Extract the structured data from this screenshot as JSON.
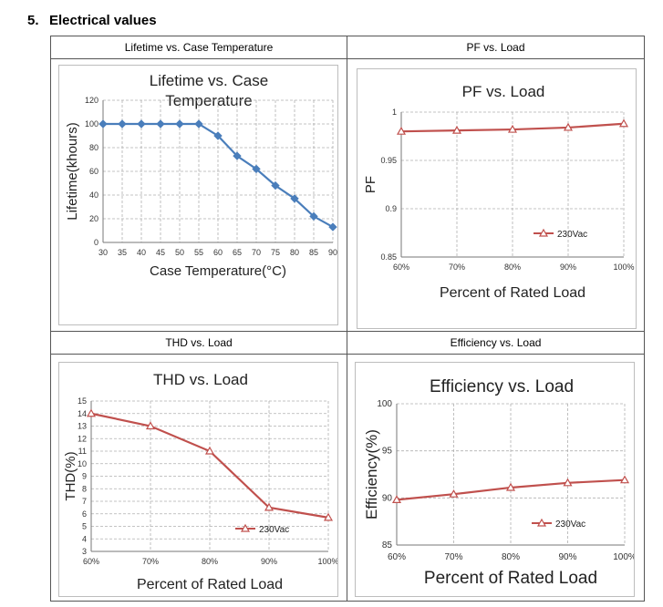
{
  "section": {
    "number": "5.",
    "title": "Electrical values"
  },
  "cells": [
    {
      "header": "Lifetime vs. Case Temperature"
    },
    {
      "header": "PF vs. Load"
    },
    {
      "header": "THD vs. Load"
    },
    {
      "header": "Efficiency vs. Load"
    }
  ],
  "colors": {
    "lifetime_line": "#4a7ebb",
    "load_line": "#c0504d",
    "grid": "#b0b0b0",
    "border": "#555555"
  },
  "chart_data": [
    {
      "type": "line",
      "title_lines": [
        "Lifetime vs. Case",
        "Temperature"
      ],
      "xlabel": "Case Temperature(°C)",
      "ylabel": "Lifetime(khours)",
      "x": [
        30,
        35,
        40,
        45,
        50,
        55,
        60,
        65,
        70,
        75,
        80,
        85,
        90
      ],
      "x_tick_labels": [
        "30",
        "35",
        "40",
        "45",
        "50",
        "55",
        "60",
        "65",
        "70",
        "75",
        "80",
        "85",
        "90"
      ],
      "ylim": [
        0,
        120
      ],
      "y_ticks": [
        0,
        20,
        40,
        60,
        80,
        100,
        120
      ],
      "y_tick_labels": [
        "0",
        "20",
        "40",
        "60",
        "80",
        "100",
        "120"
      ],
      "grid": true,
      "legend": "none",
      "series": [
        {
          "values": [
            100,
            100,
            100,
            100,
            100,
            100,
            90,
            73,
            62,
            48,
            37,
            22,
            13
          ]
        }
      ]
    },
    {
      "type": "line",
      "title": "PF vs. Load",
      "xlabel": "Percent of Rated Load",
      "ylabel": "PF",
      "categories": [
        "60%",
        "70%",
        "80%",
        "90%",
        "100%"
      ],
      "ylim": [
        0.85,
        1
      ],
      "y_ticks": [
        0.85,
        0.9,
        0.95,
        1
      ],
      "y_tick_labels": [
        "0.85",
        "0.9",
        "0.95",
        "1"
      ],
      "grid": true,
      "legend": "right",
      "series": [
        {
          "name": "230Vac",
          "values": [
            0.98,
            0.981,
            0.982,
            0.984,
            0.988
          ]
        }
      ]
    },
    {
      "type": "line",
      "title": "THD vs. Load",
      "xlabel": "Percent of Rated Load",
      "ylabel": "THD(%)",
      "categories": [
        "60%",
        "70%",
        "80%",
        "90%",
        "100%"
      ],
      "ylim": [
        3,
        15
      ],
      "y_ticks": [
        3,
        4,
        5,
        6,
        7,
        8,
        9,
        10,
        11,
        12,
        13,
        14,
        15
      ],
      "y_tick_labels": [
        "3",
        "4",
        "5",
        "6",
        "7",
        "8",
        "9",
        "10",
        "11",
        "12",
        "13",
        "14",
        "15"
      ],
      "grid": true,
      "legend": "bottom-right",
      "series": [
        {
          "name": "230Vac",
          "values": [
            14,
            13,
            11,
            6.5,
            5.7
          ]
        }
      ]
    },
    {
      "type": "line",
      "title": "Efficiency vs. Load",
      "xlabel": "Percent of Rated Load",
      "ylabel": "Efficiency(%)",
      "categories": [
        "60%",
        "70%",
        "80%",
        "90%",
        "100%"
      ],
      "ylim": [
        85,
        100
      ],
      "y_ticks": [
        85,
        90,
        95,
        100
      ],
      "y_tick_labels": [
        "85",
        "90",
        "95",
        "100"
      ],
      "grid": true,
      "legend": "bottom-right",
      "series": [
        {
          "name": "230Vac",
          "values": [
            89.8,
            90.4,
            91.1,
            91.6,
            91.9
          ]
        }
      ]
    }
  ]
}
